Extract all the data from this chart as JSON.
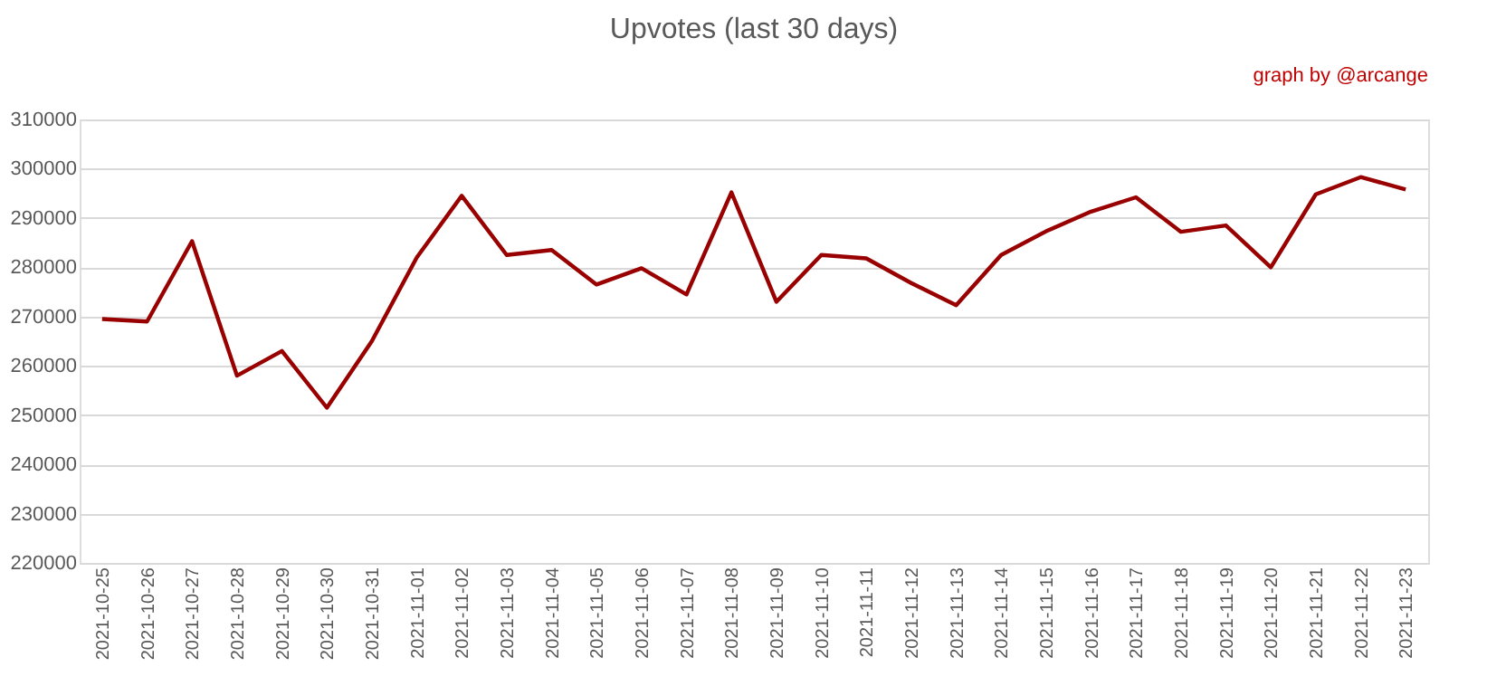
{
  "chart_data": {
    "type": "line",
    "title": "Upvotes (last 30 days)",
    "annotations": [
      "graph by @arcange"
    ],
    "categories": [
      "2021-10-25",
      "2021-10-26",
      "2021-10-27",
      "2021-10-28",
      "2021-10-29",
      "2021-10-30",
      "2021-10-31",
      "2021-11-01",
      "2021-11-02",
      "2021-11-03",
      "2021-11-04",
      "2021-11-05",
      "2021-11-06",
      "2021-11-07",
      "2021-11-08",
      "2021-11-09",
      "2021-11-10",
      "2021-11-11",
      "2021-11-12",
      "2021-11-13",
      "2021-11-14",
      "2021-11-15",
      "2021-11-16",
      "2021-11-17",
      "2021-11-18",
      "2021-11-19",
      "2021-11-20",
      "2021-11-21",
      "2021-11-22",
      "2021-11-23"
    ],
    "series": [
      {
        "color": "#990000",
        "values": [
          269500,
          269000,
          285300,
          258000,
          263000,
          251500,
          265000,
          282000,
          294500,
          282500,
          283500,
          276500,
          279800,
          274500,
          295200,
          273000,
          282500,
          281800,
          276800,
          272300,
          282500,
          287300,
          291300,
          294200,
          287200,
          288500,
          280000,
          294800,
          298300,
          295800
        ]
      }
    ],
    "ylim": [
      220000,
      310000
    ],
    "yticks": [
      220000,
      230000,
      240000,
      250000,
      260000,
      270000,
      280000,
      290000,
      300000,
      310000
    ],
    "grid": "y",
    "marker": "none",
    "line_style": "solid"
  }
}
